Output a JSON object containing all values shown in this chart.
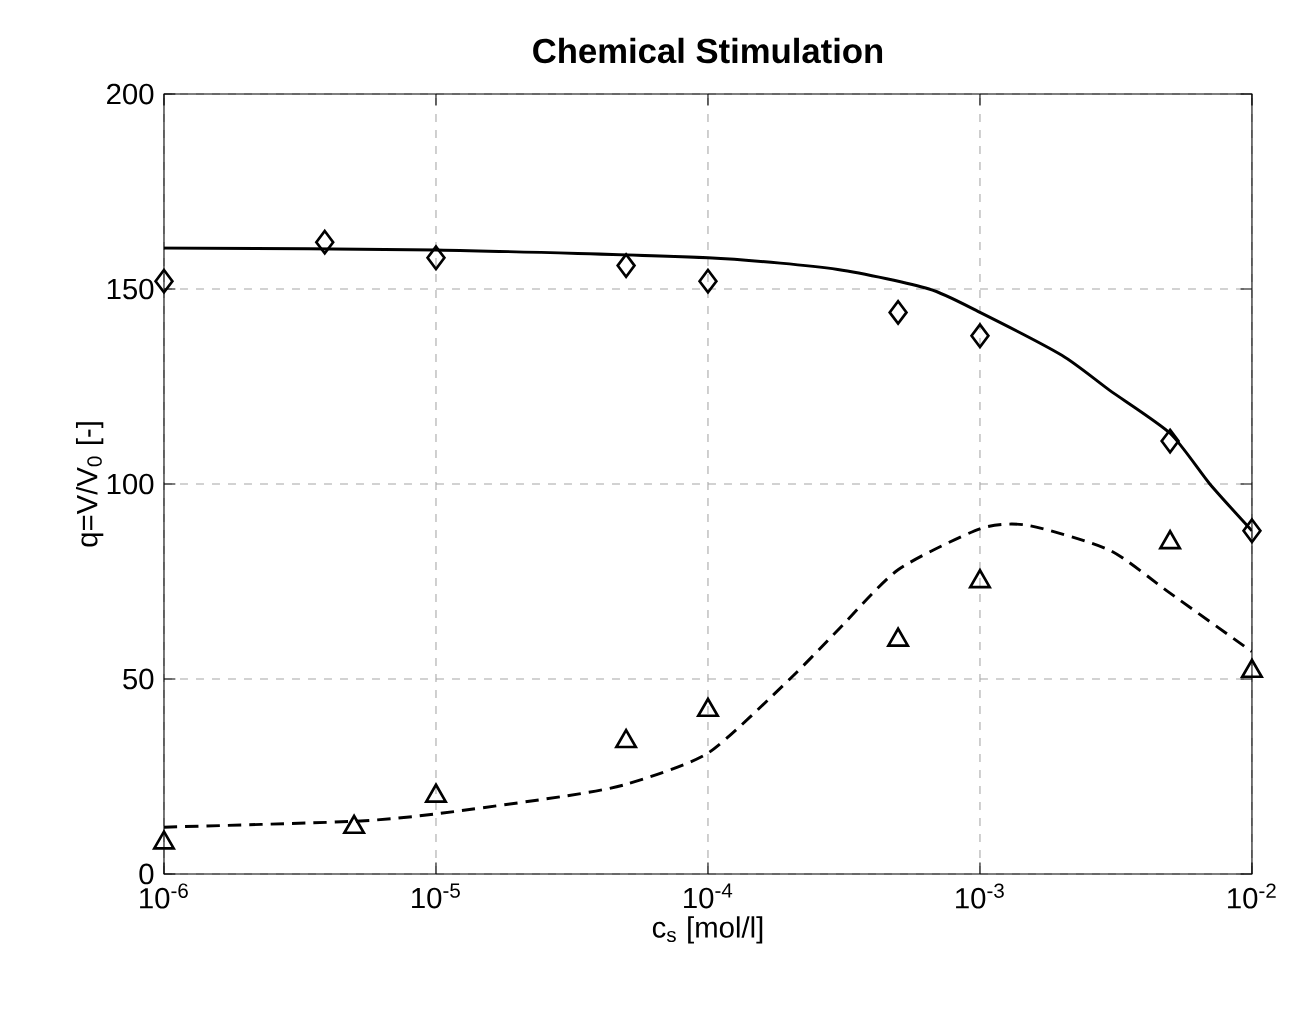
{
  "chart_data": {
    "type": "scatter",
    "title": "**Chemical Stimulation**",
    "xlabel": "c$_{s}$ [mol/l]",
    "ylabel": "q=V/V$_{0}$ [-]",
    "log": "x",
    "xlim": [
      1e-06,
      0.01
    ],
    "ylim": [
      0,
      200
    ],
    "xticks": [
      {
        "value": 1e-06,
        "label": "10$^{-6}$"
      },
      {
        "value": 1e-05,
        "label": "10$^{-5}$"
      },
      {
        "value": 0.0001,
        "label": "10$^{-4}$"
      },
      {
        "value": 0.001,
        "label": "10$^{-3}$"
      },
      {
        "value": 0.01,
        "label": "10$^{-2}$"
      }
    ],
    "yticks": [
      0,
      50,
      100,
      150,
      200
    ],
    "grid": true,
    "series": [
      {
        "color": "#000000",
        "marker": "diamond",
        "x": [
          1e-06,
          3.9e-06,
          1e-05,
          5e-05,
          0.0001,
          0.0005,
          0.001,
          0.005,
          0.01
        ],
        "values": [
          152,
          162,
          158,
          156,
          152,
          144,
          138,
          111,
          88
        ]
      },
      {
        "color": "#000000",
        "marker": "triangle",
        "x": [
          1e-06,
          5e-06,
          1e-05,
          5e-05,
          0.0001,
          0.0005,
          0.001,
          0.005,
          0.01
        ],
        "values": [
          8,
          12,
          20,
          34,
          42,
          60,
          75,
          85,
          52
        ]
      },
      {
        "type": "line",
        "color": "#000000",
        "line_style": "solid",
        "x": [
          1e-06,
          1e-05,
          0.0001,
          0.0003,
          0.00065,
          0.001,
          0.002,
          0.003,
          0.005,
          0.007,
          0.01
        ],
        "values": [
          160.5,
          160,
          158,
          155,
          150,
          144,
          133,
          124,
          113,
          100,
          88
        ]
      },
      {
        "type": "line",
        "color": "#000000",
        "line_style": "dashed",
        "x": [
          1e-06,
          5e-06,
          1e-05,
          3e-05,
          5e-05,
          0.0001,
          0.0002,
          0.0003,
          0.0005,
          0.001,
          0.0015,
          0.003,
          0.005,
          0.01
        ],
        "values": [
          12,
          13.5,
          15.4,
          20,
          23,
          31,
          50,
          62.5,
          78,
          88.5,
          89.4,
          83,
          72,
          57
        ]
      }
    ]
  }
}
